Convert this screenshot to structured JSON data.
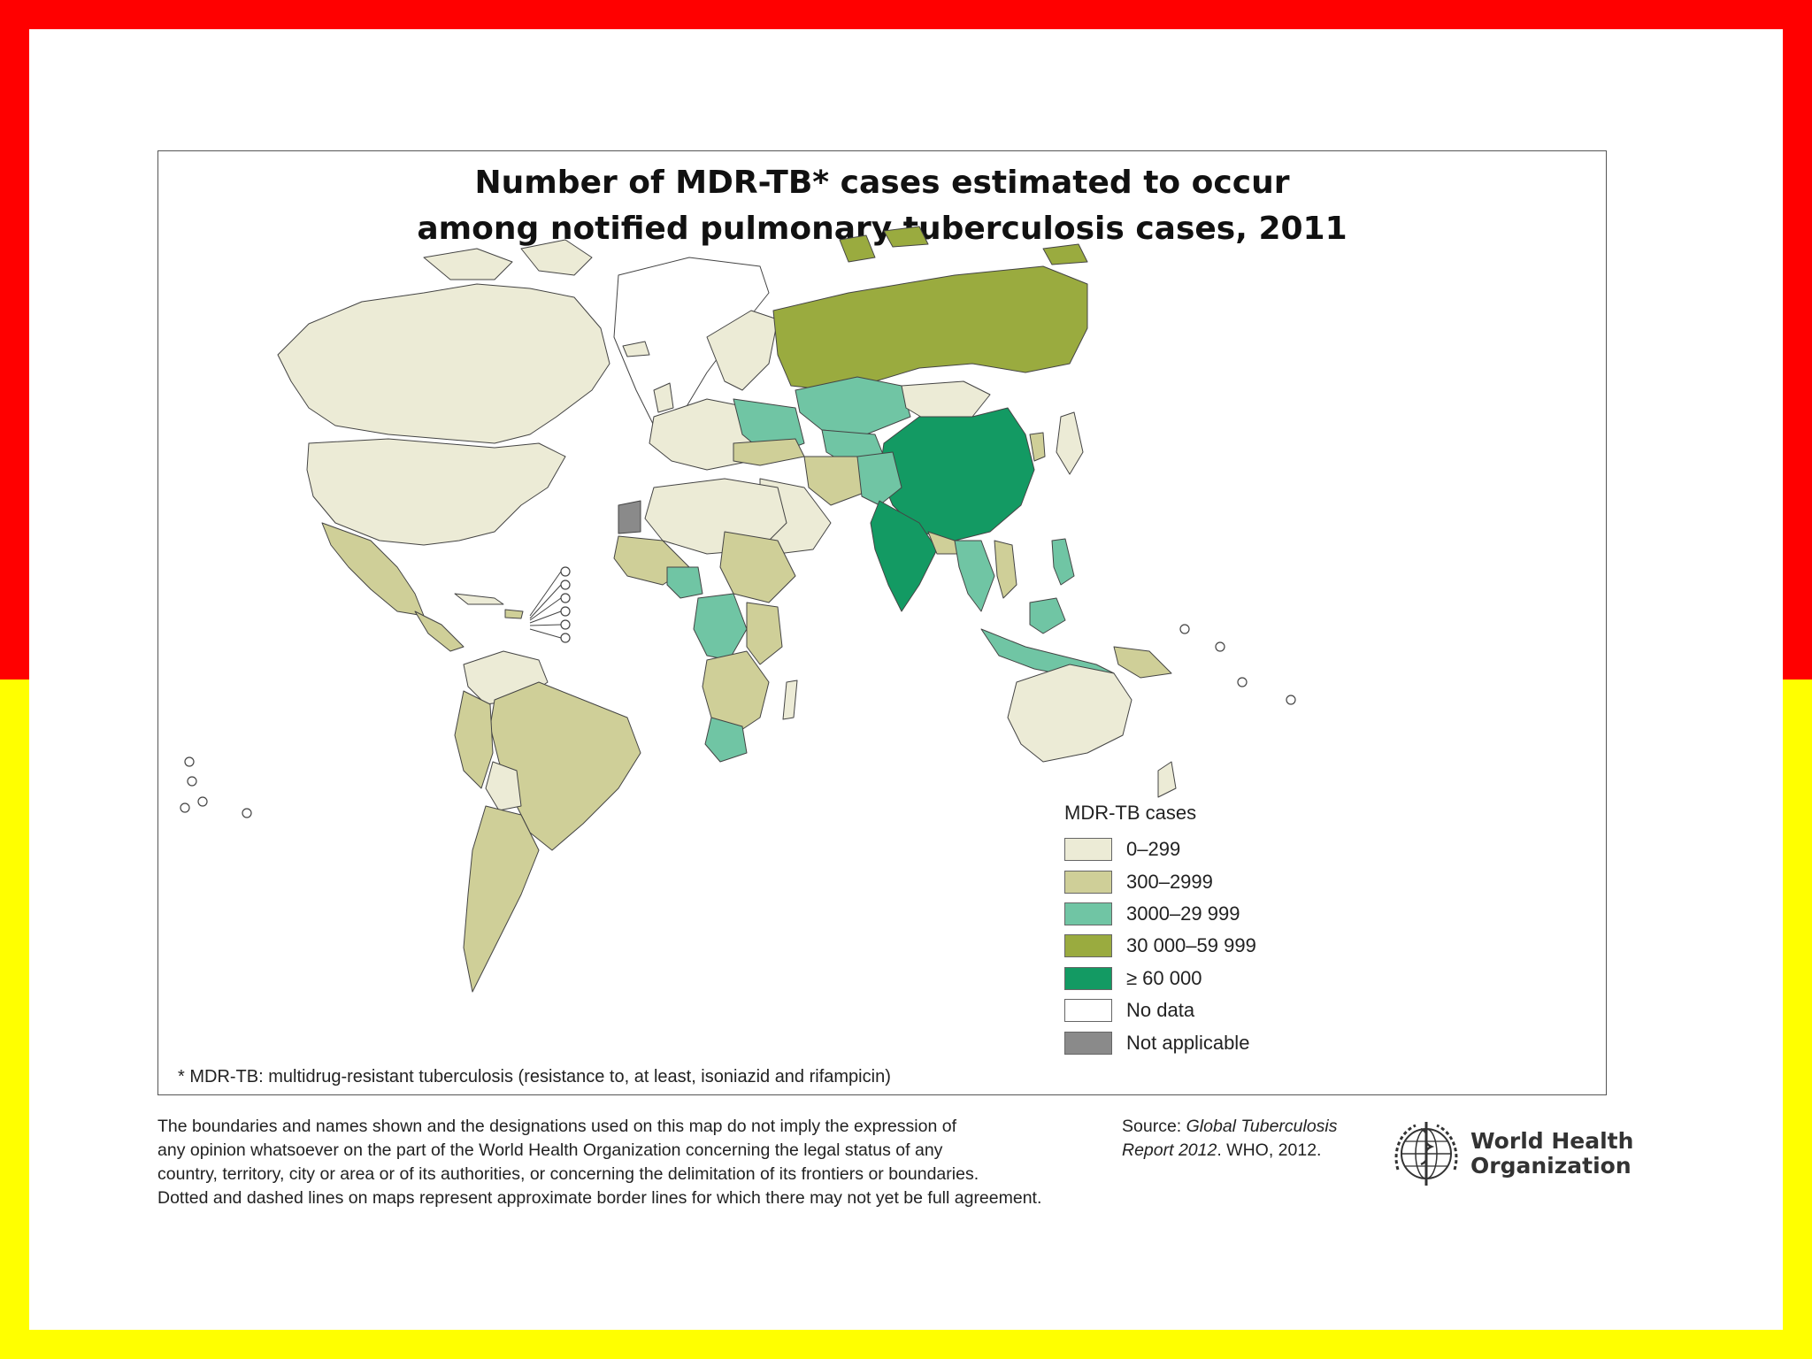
{
  "map": {
    "title_line1": "Number of MDR-TB* cases estimated to occur",
    "title_line2": "among notified pulmonary tuberculosis cases,  2011",
    "footnote": "* MDR-TB: multidrug-resistant tuberculosis (resistance to, at least, isoniazid and rifampicin)"
  },
  "legend": {
    "title": "MDR-TB cases",
    "items": [
      {
        "label": "0–299",
        "color": "#ecebd6"
      },
      {
        "label": "300–2999",
        "color": "#cfcf98"
      },
      {
        "label": "3000–29 999",
        "color": "#70c5a4"
      },
      {
        "label": "30 000–59 999",
        "color": "#9aab3f"
      },
      {
        "label": "≥ 60 000",
        "color": "#139a63"
      },
      {
        "label": "No data",
        "color": "#ffffff"
      },
      {
        "label": "Not applicable",
        "color": "#8a8a8a"
      }
    ]
  },
  "disclaimer": {
    "line1": "The boundaries and names shown and the designations used on this map do not imply the expression of",
    "line2": "any opinion whatsoever on the part of the World Health Organization concerning the legal status of any",
    "line3": "country, territory, city or area or of its authorities, or concerning the delimitation of its frontiers or boundaries.",
    "line4": "Dotted and dashed lines on maps represent approximate border lines for which there may not yet be full agreement."
  },
  "source": {
    "prefix": "Source: ",
    "publication": "Global Tuberculosis",
    "publication2": "Report 2012",
    "suffix": ". WHO, 2012."
  },
  "logo": {
    "line1": "World Health",
    "line2": "Organization"
  },
  "colors": {
    "frame_top": "#ff0000",
    "frame_bottom": "#ffff00",
    "border": "#555555"
  }
}
